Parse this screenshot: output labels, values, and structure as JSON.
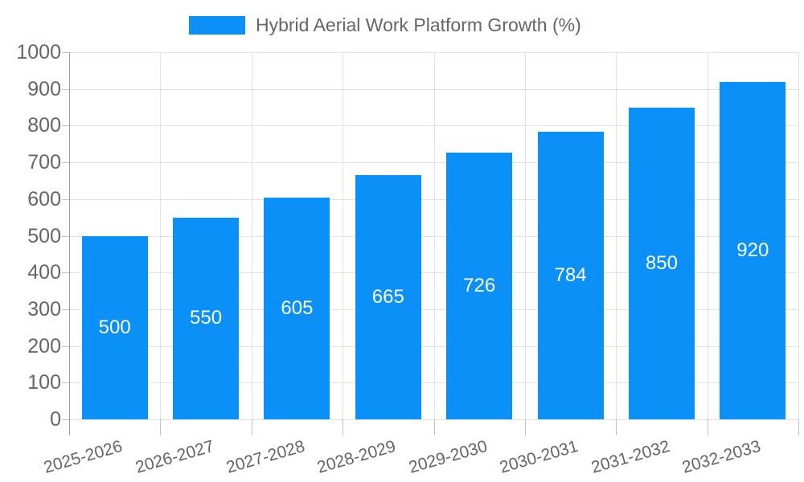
{
  "legend": {
    "series_label": "Hybrid Aerial Work Platform Growth (%)"
  },
  "chart_data": {
    "type": "bar",
    "title": "Hybrid Aerial Work Platform Growth (%)",
    "categories": [
      "2025-2026",
      "2026-2027",
      "2027-2028",
      "2028-2029",
      "2029-2030",
      "2030-2031",
      "2031-2032",
      "2032-2033"
    ],
    "values": [
      500,
      550,
      605,
      665,
      726,
      784,
      850,
      920
    ],
    "xlabel": "",
    "ylabel": "",
    "ylim": [
      0,
      1000
    ],
    "yticks": [
      0,
      100,
      200,
      300,
      400,
      500,
      600,
      700,
      800,
      900,
      1000
    ],
    "grid": true,
    "legend_position": "top-center",
    "x_label_rotation_deg": -16,
    "colors": {
      "bar": "#0b90f7",
      "bar_label": "#ffffff",
      "axis_text": "#666666",
      "grid_line": "#e2e2e2",
      "axis_line": "#9e9e9e",
      "tick_line": "#c2c2c2",
      "background": "#ffffff"
    }
  }
}
